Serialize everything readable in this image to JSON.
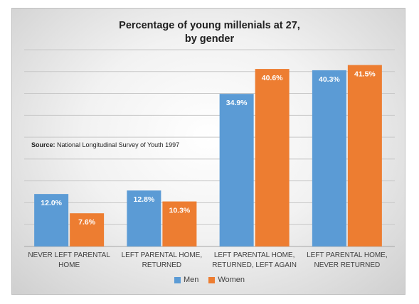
{
  "chart_data": {
    "type": "bar",
    "title_line1": "Percentage of young millenials at 27,",
    "title_line2": "by gender",
    "source_label": "Source:",
    "source_text": "National Longitudinal Survey of Youth 1997",
    "categories": [
      [
        "NEVER LEFT PARENTAL",
        "HOME"
      ],
      [
        "LEFT PARENTAL HOME,",
        "RETURNED"
      ],
      [
        "LEFT PARENTAL HOME,",
        "RETURNED, LEFT AGAIN"
      ],
      [
        "LEFT PARENTAL HOME,",
        "NEVER RETURNED"
      ]
    ],
    "series": [
      {
        "name": "Men",
        "color": "#5b9bd5",
        "values": [
          12.0,
          12.8,
          34.9,
          40.3
        ],
        "labels": [
          "12.0%",
          "12.8%",
          "34.9%",
          "40.3%"
        ]
      },
      {
        "name": "Women",
        "color": "#ed7d31",
        "values": [
          7.6,
          10.3,
          40.6,
          41.5
        ],
        "labels": [
          "7.6%",
          "10.3%",
          "40.6%",
          "41.5%"
        ]
      }
    ],
    "ylim": [
      0,
      45
    ],
    "grid": true,
    "legend_position": "bottom"
  }
}
